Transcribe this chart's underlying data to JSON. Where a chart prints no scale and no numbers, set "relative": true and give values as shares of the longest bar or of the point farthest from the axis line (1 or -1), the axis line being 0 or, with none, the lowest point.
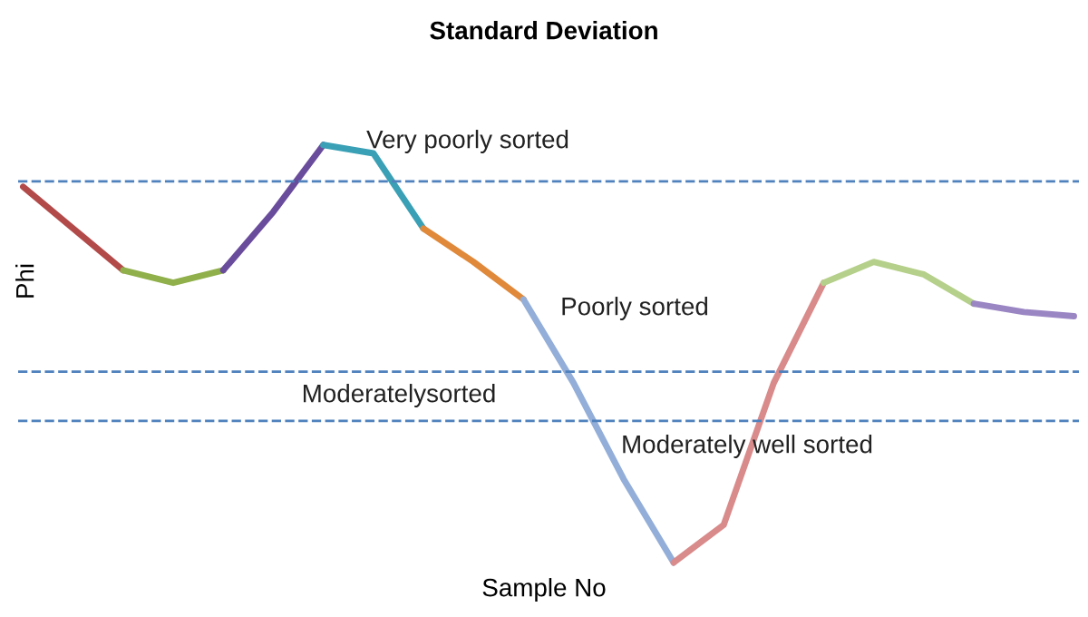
{
  "chart_data": {
    "type": "line",
    "title": "Standard Deviation",
    "xlabel": "Sample No",
    "ylabel": "Phi",
    "relative": true,
    "line_style": "solid",
    "grid": false,
    "legend": false,
    "categories": [
      null,
      null,
      null,
      null,
      null,
      null,
      null,
      null,
      null,
      null,
      null,
      null,
      null,
      null,
      null,
      null,
      null,
      null,
      null,
      null,
      null,
      null
    ],
    "series": [
      {
        "color": "#b34a4a",
        "values": [
          0.9,
          0.8,
          0.7,
          null,
          null,
          null,
          null,
          null,
          null,
          null,
          null,
          null,
          null,
          null,
          null,
          null,
          null,
          null,
          null,
          null,
          null,
          null
        ]
      },
      {
        "color": "#8fb04a",
        "values": [
          null,
          null,
          0.7,
          0.67,
          0.7,
          null,
          null,
          null,
          null,
          null,
          null,
          null,
          null,
          null,
          null,
          null,
          null,
          null,
          null,
          null,
          null,
          null
        ]
      },
      {
        "color": "#6a4c9c",
        "values": [
          null,
          null,
          null,
          null,
          0.7,
          0.84,
          1.0,
          null,
          null,
          null,
          null,
          null,
          null,
          null,
          null,
          null,
          null,
          null,
          null,
          null,
          null,
          null
        ]
      },
      {
        "color": "#3aa0b5",
        "values": [
          null,
          null,
          null,
          null,
          null,
          null,
          1.0,
          0.98,
          0.8,
          null,
          null,
          null,
          null,
          null,
          null,
          null,
          null,
          null,
          null,
          null,
          null,
          null
        ]
      },
      {
        "color": "#e0893a",
        "values": [
          null,
          null,
          null,
          null,
          null,
          null,
          null,
          null,
          0.8,
          0.72,
          0.63,
          null,
          null,
          null,
          null,
          null,
          null,
          null,
          null,
          null,
          null,
          null
        ]
      },
      {
        "color": "#93aed8",
        "values": [
          null,
          null,
          null,
          null,
          null,
          null,
          null,
          null,
          null,
          null,
          0.63,
          0.43,
          0.2,
          0.0,
          null,
          null,
          null,
          null,
          null,
          null,
          null,
          null
        ]
      },
      {
        "color": "#d98a8a",
        "values": [
          null,
          null,
          null,
          null,
          null,
          null,
          null,
          null,
          null,
          null,
          null,
          null,
          null,
          0.0,
          0.09,
          0.43,
          0.67,
          null,
          null,
          null,
          null,
          null
        ]
      },
      {
        "color": "#b5d08a",
        "values": [
          null,
          null,
          null,
          null,
          null,
          null,
          null,
          null,
          null,
          null,
          null,
          null,
          null,
          null,
          null,
          null,
          0.67,
          0.72,
          0.69,
          0.62,
          null,
          null
        ]
      },
      {
        "color": "#9b86c4",
        "values": [
          null,
          null,
          null,
          null,
          null,
          null,
          null,
          null,
          null,
          null,
          null,
          null,
          null,
          null,
          null,
          null,
          null,
          null,
          null,
          0.62,
          0.6,
          0.59
        ]
      }
    ],
    "ref_lines": [
      {
        "axis": "y",
        "value": 0.913,
        "color": "#4f81bd",
        "line_style": "dashed"
      },
      {
        "axis": "y",
        "value": 0.457,
        "color": "#4f81bd",
        "line_style": "dashed"
      },
      {
        "axis": "y",
        "value": 0.339,
        "color": "#4f81bd",
        "line_style": "dashed"
      }
    ],
    "annotations": [
      "Very poorly sorted",
      "Poorly sorted",
      "Moderatelysorted",
      "Moderately well sorted"
    ]
  }
}
